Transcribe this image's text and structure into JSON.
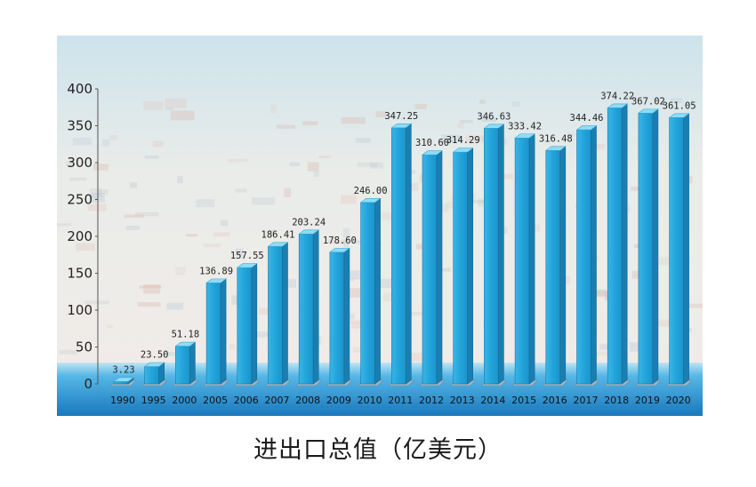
{
  "chart_data": {
    "type": "bar",
    "title": "进出口总值（亿美元）",
    "categories": [
      "1990",
      "1995",
      "2000",
      "2005",
      "2006",
      "2007",
      "2008",
      "2009",
      "2010",
      "2011",
      "2012",
      "2013",
      "2014",
      "2015",
      "2016",
      "2017",
      "2018",
      "2019",
      "2020"
    ],
    "values": [
      3.23,
      23.5,
      51.18,
      136.89,
      157.55,
      186.41,
      203.24,
      178.6,
      246.0,
      347.25,
      310.6,
      314.29,
      346.63,
      333.42,
      316.48,
      344.46,
      374.22,
      367.02,
      361.05
    ],
    "data_labels": [
      "3.23",
      "23.50",
      "51.18",
      "136.89",
      "157.55",
      "186.41",
      "203.24",
      "178.60",
      "246.00",
      "347.25",
      "310.60",
      "314.29",
      "346.63",
      "333.42",
      "316.48",
      "344.46",
      "374.22",
      "367.02",
      "361.05"
    ],
    "ylim": [
      0,
      400
    ],
    "yticks": [
      "0",
      "50",
      "100",
      "150",
      "200",
      "250",
      "300",
      "350",
      "400"
    ],
    "xlabel": "",
    "ylabel": "",
    "grid": false,
    "colors": {
      "bar_front": "#2aa8dc",
      "bar_top": "#8edcf7",
      "bar_side": "#1a7fb0",
      "floor": "#1f86c7",
      "background_top": "#d3e6ee",
      "background_bottom": "#f3ece8"
    }
  }
}
